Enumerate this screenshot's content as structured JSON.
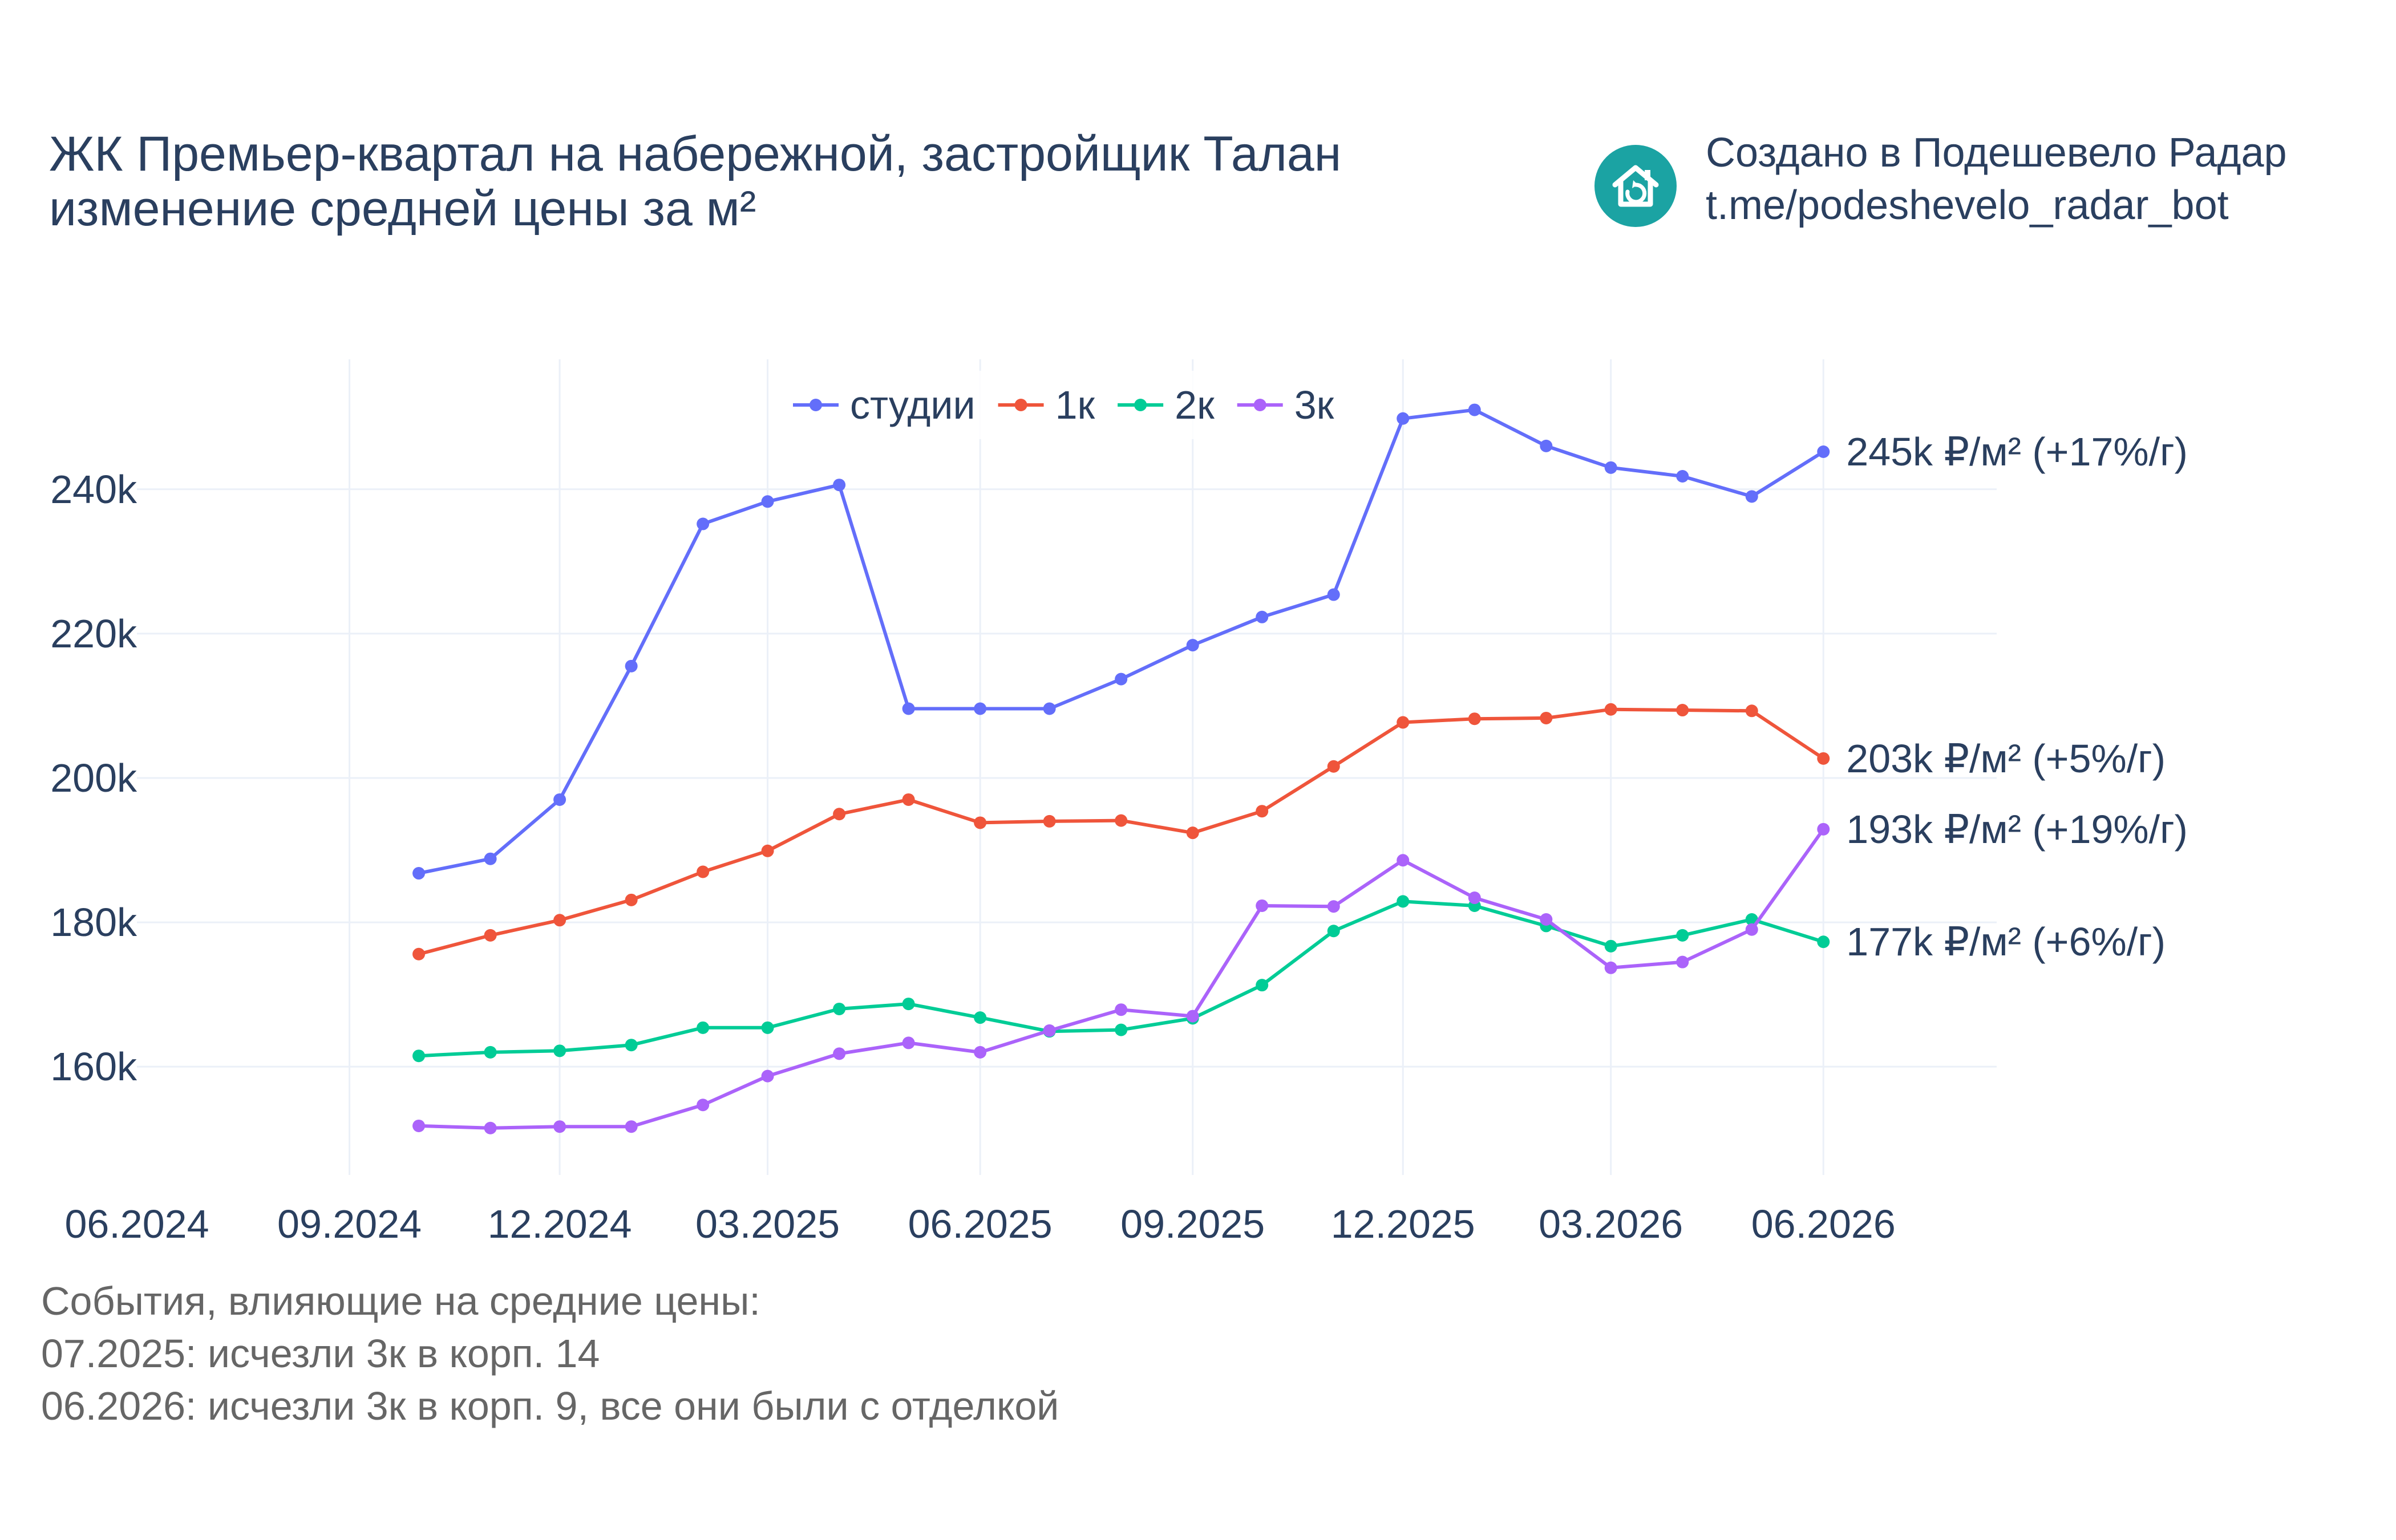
{
  "title": {
    "line1": "ЖК Премьер-квартал на набережной, застройщик Талан",
    "line2": "изменение средней цены за м²"
  },
  "credit": {
    "line1": "Создано в Подешевело Радар",
    "line2": "t.me/podeshevelo_radar_bot",
    "logo_icon": "house-refresh-icon",
    "logo_color": "#1ba3a3"
  },
  "notes": {
    "heading": "События, влияющие на средние цены:",
    "items": [
      "07.2025: исчезли 3к в корп. 14",
      "06.2026: исчезли 3к в корп. 9, все они были с отделкой"
    ]
  },
  "chart_data": {
    "type": "line",
    "title": "",
    "xlabel": "",
    "ylabel": "",
    "x_ticks": [
      "06.2024",
      "09.2024",
      "12.2024",
      "03.2025",
      "06.2025",
      "09.2025",
      "12.2025",
      "03.2026",
      "06.2026"
    ],
    "x_range": [
      "2024-06-01",
      "2026-08-15"
    ],
    "y_ticks": [
      {
        "value": 160000,
        "label": "160k"
      },
      {
        "value": 180000,
        "label": "180k"
      },
      {
        "value": 200000,
        "label": "200k"
      },
      {
        "value": 220000,
        "label": "220k"
      },
      {
        "value": 240000,
        "label": "240k"
      }
    ],
    "ylim": [
      145000,
      258000
    ],
    "grid": true,
    "legend_position": "top-center",
    "x": [
      "2024-10-01",
      "2024-11-01",
      "2024-12-01",
      "2025-01-01",
      "2025-02-01",
      "2025-03-01",
      "2025-04-01",
      "2025-05-01",
      "2025-06-01",
      "2025-07-01",
      "2025-08-01",
      "2025-09-01",
      "2025-10-01",
      "2025-11-01",
      "2025-12-01",
      "2026-01-01",
      "2026-02-01",
      "2026-03-01",
      "2026-04-01",
      "2026-05-01",
      "2026-06-01"
    ],
    "series": [
      {
        "name": "студии",
        "color": "#636efa",
        "values": [
          186800,
          188800,
          197000,
          215500,
          235200,
          238300,
          240600,
          209600,
          209600,
          209600,
          213700,
          218400,
          222300,
          225400,
          249800,
          251000,
          246000,
          243000,
          241800,
          239000,
          245200
        ],
        "end_label": "245k ₽/м² (+17%/г)"
      },
      {
        "name": "1к",
        "color": "#ef553b",
        "values": [
          175600,
          178200,
          180300,
          183100,
          187000,
          189900,
          195000,
          197000,
          193800,
          194000,
          194100,
          192400,
          195400,
          201600,
          207700,
          208200,
          208300,
          209500,
          209400,
          209300,
          202700
        ],
        "end_label": "203k ₽/м² (+5%/г)"
      },
      {
        "name": "2к",
        "color": "#00cc96",
        "values": [
          161500,
          162000,
          162200,
          163000,
          165400,
          165400,
          168000,
          168700,
          166800,
          164900,
          165100,
          166700,
          171300,
          178800,
          182900,
          182300,
          179500,
          176700,
          178200,
          180400,
          177300
        ],
        "end_label": "177k ₽/м² (+6%/г)"
      },
      {
        "name": "3к",
        "color": "#ab63fa",
        "values": [
          151800,
          151500,
          151700,
          151700,
          154700,
          158700,
          161800,
          163300,
          162000,
          165000,
          167900,
          167000,
          182300,
          182200,
          188600,
          183400,
          180400,
          173700,
          174500,
          179000,
          192900
        ],
        "end_label": "193k ₽/м² (+19%/г)"
      }
    ]
  }
}
